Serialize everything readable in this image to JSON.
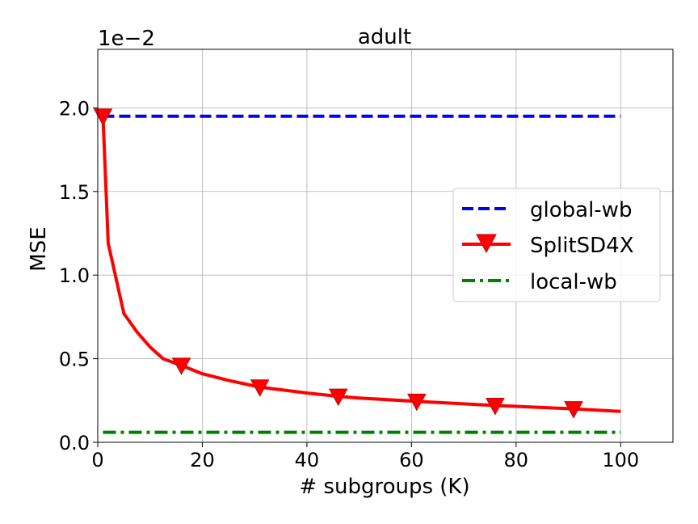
{
  "chart_data": {
    "type": "line",
    "title": "adult",
    "xlabel": "# subgroups (K)",
    "ylabel": "MSE",
    "y_offset_label": "1e−2",
    "xlim": [
      0,
      110
    ],
    "ylim": [
      0,
      2.35
    ],
    "xticks": [
      0,
      20,
      40,
      60,
      80,
      100
    ],
    "xtick_labels": [
      "0",
      "20",
      "40",
      "60",
      "80",
      "100"
    ],
    "yticks": [
      0,
      0.5,
      1.0,
      1.5,
      2.0
    ],
    "ytick_labels": [
      "0.0",
      "0.5",
      "1.0",
      "1.5",
      "2.0"
    ],
    "grid": true,
    "legend_position": "center-right",
    "series": [
      {
        "name": "global-wb",
        "color": "#0000ff",
        "style": "dashed",
        "marker": "none",
        "x": [
          1,
          100
        ],
        "y": [
          1.95,
          1.95
        ]
      },
      {
        "name": "SplitSD4X",
        "color": "#ff0000",
        "style": "solid",
        "marker": "triangle-down",
        "markevery_x": [
          1,
          16,
          31,
          46,
          61,
          76,
          91
        ],
        "x": [
          1,
          2,
          3,
          4,
          5,
          7.5,
          10,
          12.5,
          16,
          20,
          25,
          31,
          40,
          46,
          50,
          61,
          70,
          76,
          80,
          91,
          100
        ],
        "y": [
          1.95,
          1.19,
          1.05,
          0.91,
          0.77,
          0.66,
          0.57,
          0.5,
          0.46,
          0.41,
          0.37,
          0.33,
          0.295,
          0.275,
          0.265,
          0.245,
          0.23,
          0.22,
          0.215,
          0.2,
          0.185
        ]
      },
      {
        "name": "local-wb",
        "color": "#008000",
        "style": "dashdot",
        "marker": "none",
        "x": [
          1,
          100
        ],
        "y": [
          0.06,
          0.06
        ]
      }
    ]
  }
}
